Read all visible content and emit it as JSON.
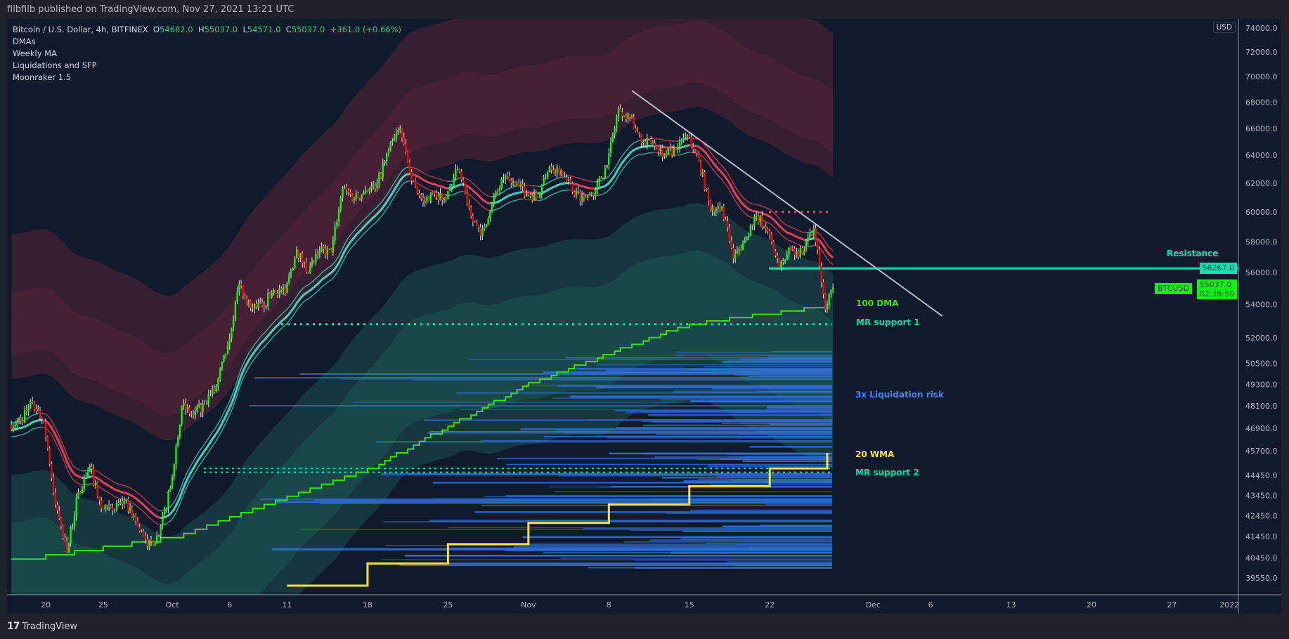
{
  "header": {
    "published": "filbfilb published on TradingView.com, Nov 27, 2021 13:21 UTC"
  },
  "legend": {
    "symbol": "Bitcoin / U.S. Dollar, 4h, BITFINEX",
    "o_label": "O",
    "o": "54682.0",
    "h_label": "H",
    "h": "55037.0",
    "l_label": "L",
    "l": "54571.0",
    "c_label": "C",
    "c": "55037.0",
    "change": "+361.0 (+0.66%)",
    "indicators": [
      "DMAs",
      "Weekly MA",
      "Liquidations and SFP",
      "Moonraker 1.5"
    ]
  },
  "footer": {
    "logo_mark": "17",
    "brand": "TradingView"
  },
  "price_axis": {
    "currency": "USD",
    "scale": "log",
    "ticks": [
      "74000.0",
      "72000.0",
      "70000.0",
      "68000.0",
      "66000.0",
      "64000.0",
      "62000.0",
      "60000.0",
      "58000.0",
      "56000.0",
      "54000.0",
      "52000.0",
      "50500.0",
      "49300.0",
      "48100.0",
      "46900.0",
      "45700.0",
      "44450.0",
      "43450.0",
      "42450.0",
      "41450.0",
      "40450.0",
      "39550.0"
    ]
  },
  "time_axis": {
    "ticks": [
      "20",
      "25",
      "Oct",
      "6",
      "11",
      "18",
      "25",
      "Nov",
      "8",
      "15",
      "22",
      "Dec",
      "6",
      "13",
      "20",
      "27",
      "2022"
    ]
  },
  "price_tags": {
    "resistance": "56267.0",
    "last_price": "55037.0",
    "countdown": "02:38:50",
    "symbol_tag": "BTCUSD"
  },
  "annotations": {
    "resistance": "Resistance",
    "dma100": "100 DMA",
    "mr_support_1": "MR support 1",
    "liquidation": "3x Liquidation risk",
    "wma20": "20 WMA",
    "mr_support_2": "MR support 2"
  },
  "colors": {
    "background": "#0f1b2b",
    "up": "#00ff00",
    "down": "#ff0000",
    "resistance": "#00e5b5",
    "dma100": "#3ddc1a",
    "wma20": "#ffe033",
    "liquidation": "#2f6fd6",
    "trendline": "#b8bcc6",
    "band_upper": "#5a2238",
    "band_lower": "#1d5a55"
  },
  "chart_data": {
    "type": "candlestick",
    "timeframe": "4h",
    "y_scale": "log",
    "ylim": [
      38900,
      75000
    ],
    "daily_close": {
      "dates": [
        "2021-09-17",
        "2021-09-18",
        "2021-09-19",
        "2021-09-20",
        "2021-09-21",
        "2021-09-22",
        "2021-09-23",
        "2021-09-24",
        "2021-09-25",
        "2021-09-26",
        "2021-09-27",
        "2021-09-28",
        "2021-09-29",
        "2021-09-30",
        "2021-10-01",
        "2021-10-02",
        "2021-10-03",
        "2021-10-04",
        "2021-10-05",
        "2021-10-06",
        "2021-10-07",
        "2021-10-08",
        "2021-10-09",
        "2021-10-10",
        "2021-10-11",
        "2021-10-12",
        "2021-10-13",
        "2021-10-14",
        "2021-10-15",
        "2021-10-16",
        "2021-10-17",
        "2021-10-18",
        "2021-10-19",
        "2021-10-20",
        "2021-10-21",
        "2021-10-22",
        "2021-10-23",
        "2021-10-24",
        "2021-10-25",
        "2021-10-26",
        "2021-10-27",
        "2021-10-28",
        "2021-10-29",
        "2021-10-30",
        "2021-10-31",
        "2021-11-01",
        "2021-11-02",
        "2021-11-03",
        "2021-11-04",
        "2021-11-05",
        "2021-11-06",
        "2021-11-07",
        "2021-11-08",
        "2021-11-09",
        "2021-11-10",
        "2021-11-11",
        "2021-11-12",
        "2021-11-13",
        "2021-11-14",
        "2021-11-15",
        "2021-11-16",
        "2021-11-17",
        "2021-11-18",
        "2021-11-19",
        "2021-11-20",
        "2021-11-21",
        "2021-11-22",
        "2021-11-23",
        "2021-11-24",
        "2021-11-25",
        "2021-11-26",
        "2021-11-27"
      ],
      "close": [
        47300,
        48300,
        47250,
        43000,
        40700,
        43600,
        44900,
        42800,
        42700,
        43200,
        42200,
        41000,
        41500,
        43800,
        48100,
        47600,
        48200,
        49200,
        51500,
        55300,
        53800,
        53900,
        54900,
        54700,
        57500,
        56000,
        57400,
        57300,
        61700,
        60900,
        61500,
        62000,
        64300,
        66000,
        62200,
        60700,
        61300,
        60900,
        63000,
        60300,
        58400,
        60600,
        62300,
        61900,
        61300,
        61000,
        63200,
        62900,
        61400,
        61000,
        61500,
        63300,
        67500,
        66900,
        64900,
        64900,
        64100,
        64400,
        65500,
        63600,
        60100,
        60400,
        56900,
        58100,
        59700,
        58700,
        56300,
        57600,
        57200,
        58900,
        53700,
        55037
      ]
    },
    "dma100": {
      "dates": [
        "2021-09-17",
        "2021-10-01",
        "2021-10-18",
        "2021-11-01",
        "2021-11-15",
        "2021-11-27"
      ],
      "values": [
        40300,
        41400,
        44700,
        49300,
        52800,
        53900
      ]
    },
    "wma20": {
      "dates": [
        "2021-10-11",
        "2021-10-18",
        "2021-10-25",
        "2021-11-01",
        "2021-11-08",
        "2021-11-15",
        "2021-11-22",
        "2021-11-27"
      ],
      "values": [
        39200,
        40200,
        41100,
        42100,
        43000,
        43900,
        44800,
        45600
      ]
    },
    "resistance_level": 56267,
    "mr_support_1": 52800,
    "mr_support_2": [
      44800,
      44600
    ],
    "red_level": 60000,
    "trendline": {
      "from": {
        "date": "2021-11-10",
        "price": 68900
      },
      "to": {
        "date": "2021-12-07",
        "price": 53300
      }
    },
    "liquidation_range": [
      40000,
      51200
    ]
  }
}
